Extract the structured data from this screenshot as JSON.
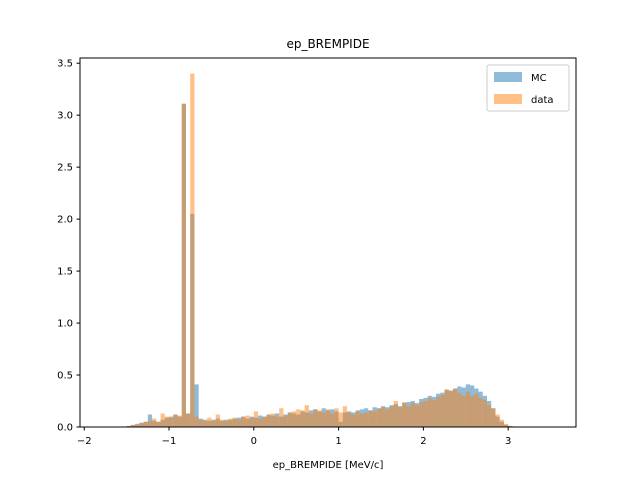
{
  "chart_data": {
    "type": "bar",
    "title": "ep_BREMPIDE",
    "xlabel": "ep_BREMPIDE [MeV/c]",
    "ylabel": "",
    "xlim": [
      -2.05,
      3.8
    ],
    "ylim": [
      0,
      3.55
    ],
    "xticks": [
      -2,
      -1,
      0,
      1,
      2,
      3
    ],
    "yticks": [
      0.0,
      0.5,
      1.0,
      1.5,
      2.0,
      2.5,
      3.0,
      3.5
    ],
    "bin_start": -1.8,
    "bin_width": 0.05,
    "legend_position": "top-right",
    "grid": false,
    "series": [
      {
        "name": "MC",
        "color": "#1f77b4",
        "opacity": 0.5,
        "values": [
          0,
          0,
          0,
          0,
          0,
          0,
          0.01,
          0.02,
          0.03,
          0.04,
          0.05,
          0.12,
          0.06,
          0.05,
          0.07,
          0.09,
          0.1,
          0.12,
          0.1,
          3.11,
          0.13,
          2.05,
          0.41,
          0.08,
          0.07,
          0.06,
          0.07,
          0.08,
          0.06,
          0.07,
          0.07,
          0.08,
          0.09,
          0.1,
          0.08,
          0.1,
          0.09,
          0.11,
          0.1,
          0.12,
          0.11,
          0.13,
          0.1,
          0.12,
          0.14,
          0.13,
          0.12,
          0.15,
          0.14,
          0.16,
          0.17,
          0.15,
          0.18,
          0.16,
          0.17,
          0.15,
          0.05,
          0.14,
          0.15,
          0.14,
          0.16,
          0.17,
          0.18,
          0.16,
          0.19,
          0.18,
          0.2,
          0.19,
          0.21,
          0.22,
          0.2,
          0.23,
          0.24,
          0.25,
          0.23,
          0.27,
          0.28,
          0.3,
          0.29,
          0.32,
          0.33,
          0.36,
          0.35,
          0.37,
          0.39,
          0.38,
          0.41,
          0.4,
          0.37,
          0.34,
          0.3,
          0.25,
          0.18,
          0.1,
          0.05,
          0.02,
          0.01
        ]
      },
      {
        "name": "data",
        "color": "#ff7f0e",
        "opacity": 0.5,
        "values": [
          0,
          0,
          0,
          0,
          0,
          0,
          0.01,
          0.02,
          0.02,
          0.04,
          0.05,
          0.06,
          0.08,
          0.05,
          0.13,
          0.1,
          0.09,
          0.12,
          0.11,
          3.11,
          0.13,
          3.4,
          0.1,
          0.07,
          0.06,
          0.09,
          0.06,
          0.12,
          0.07,
          0.06,
          0.08,
          0.09,
          0.07,
          0.1,
          0.11,
          0.09,
          0.15,
          0.08,
          0.1,
          0.12,
          0.13,
          0.1,
          0.18,
          0.11,
          0.14,
          0.15,
          0.17,
          0.16,
          0.21,
          0.13,
          0.17,
          0.16,
          0.14,
          0.17,
          0.13,
          0.18,
          0.14,
          0.2,
          0.14,
          0.12,
          0.15,
          0.13,
          0.14,
          0.16,
          0.15,
          0.18,
          0.19,
          0.17,
          0.2,
          0.25,
          0.19,
          0.24,
          0.2,
          0.23,
          0.21,
          0.24,
          0.25,
          0.28,
          0.26,
          0.29,
          0.31,
          0.36,
          0.35,
          0.37,
          0.33,
          0.3,
          0.34,
          0.3,
          0.32,
          0.28,
          0.26,
          0.21,
          0.18,
          0.12,
          0.07,
          0.03,
          0.01
        ]
      }
    ]
  }
}
